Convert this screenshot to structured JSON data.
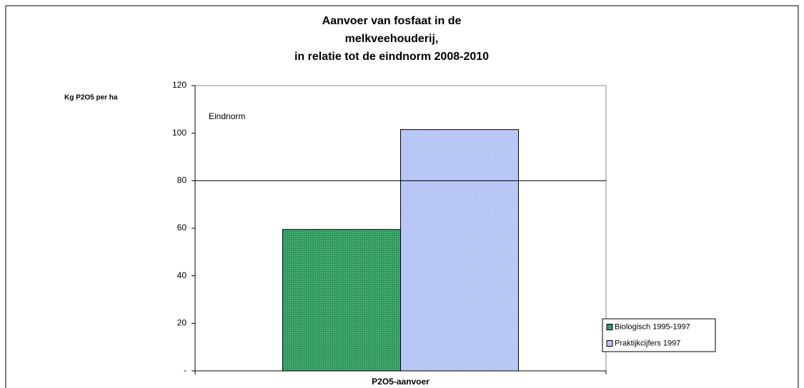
{
  "chart_data": {
    "type": "bar",
    "title": [
      "Aanvoer van fosfaat in de",
      "melkveehouderij,",
      "in relatie tot de eindnorm 2008-2010"
    ],
    "y_label": "Kg P2O5 per ha",
    "categories": [
      "P2O5-aanvoer"
    ],
    "series": [
      {
        "name": "Biologisch 1995-1997",
        "color": "#2e9a5e",
        "values": [
          59.5
        ]
      },
      {
        "name": "Praktijkcijfers 1997",
        "color": "#b4c4f4",
        "values": [
          101.5
        ]
      }
    ],
    "eindnorm": {
      "label": "Eindnorm",
      "value": 80
    },
    "ylim": [
      0,
      120
    ],
    "yticks": [
      {
        "value": 0,
        "label": "-"
      },
      20,
      40,
      60,
      80,
      100,
      120
    ],
    "legend": "right"
  }
}
